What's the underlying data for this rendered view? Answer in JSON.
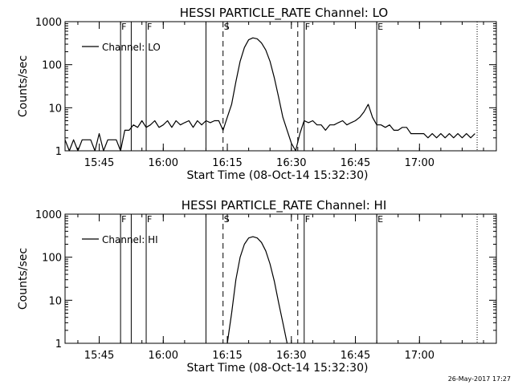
{
  "footer_date": "26-May-2017 17:27",
  "chart_data": [
    {
      "type": "line",
      "title": "HESSI PARTICLE_RATE Channel: LO",
      "xlabel": "Start Time (08-Oct-14 15:32:30)",
      "ylabel": "Counts/sec",
      "legend": "Channel: LO",
      "legend_placement": "top-left",
      "yscale": "log",
      "ylim": [
        1,
        1000
      ],
      "xlim": [
        "15:37",
        "17:18"
      ],
      "xticks": [
        "15:45",
        "16:00",
        "16:15",
        "16:30",
        "16:45",
        "17:00"
      ],
      "yticks": [
        "1",
        "10",
        "100",
        "1000"
      ],
      "markers": [
        {
          "time": "15:50.0",
          "style": "solid",
          "label": "F"
        },
        {
          "time": "15:52.5",
          "style": "solid",
          "label": ""
        },
        {
          "time": "15:56.0",
          "style": "solid",
          "label": "F"
        },
        {
          "time": "16:10.0",
          "style": "solid",
          "label": ""
        },
        {
          "time": "16:14.0",
          "style": "dashed",
          "label": "S"
        },
        {
          "time": "16:31.5",
          "style": "dashed",
          "label": ""
        },
        {
          "time": "16:33.0",
          "style": "solid",
          "label": "F"
        },
        {
          "time": "16:50.0",
          "style": "solid",
          "label": "E"
        },
        {
          "time": "17:13.5",
          "style": "dotted",
          "label": ""
        }
      ],
      "series": [
        {
          "name": "Channel: LO",
          "time": [
            "15:37",
            "15:38",
            "15:39",
            "15:40",
            "15:41",
            "15:42",
            "15:43",
            "15:44",
            "15:45",
            "15:46",
            "15:47",
            "15:48",
            "15:49",
            "15:50",
            "15:51",
            "15:52",
            "15:53",
            "15:54",
            "15:55",
            "15:56",
            "15:57",
            "15:58",
            "15:59",
            "16:00",
            "16:01",
            "16:02",
            "16:03",
            "16:04",
            "16:05",
            "16:06",
            "16:07",
            "16:08",
            "16:09",
            "16:10",
            "16:11",
            "16:12",
            "16:13",
            "16:14",
            "16:15",
            "16:16",
            "16:17",
            "16:18",
            "16:19",
            "16:20",
            "16:21",
            "16:22",
            "16:23",
            "16:24",
            "16:25",
            "16:26",
            "16:27",
            "16:28",
            "16:29",
            "16:30",
            "16:31",
            "16:32",
            "16:33",
            "16:34",
            "16:35",
            "16:36",
            "16:37",
            "16:38",
            "16:39",
            "16:40",
            "16:41",
            "16:42",
            "16:43",
            "16:44",
            "16:45",
            "16:46",
            "16:47",
            "16:48",
            "16:49",
            "16:50",
            "16:51",
            "16:52",
            "16:53",
            "16:54",
            "16:55",
            "16:56",
            "16:57",
            "16:58",
            "16:59",
            "17:00",
            "17:01",
            "17:02",
            "17:03",
            "17:04",
            "17:05",
            "17:06",
            "17:07",
            "17:08",
            "17:09",
            "17:10",
            "17:11",
            "17:12",
            "17:13"
          ],
          "values": [
            1.8,
            1,
            1.8,
            1,
            1.8,
            1.8,
            1.8,
            1,
            2.5,
            1,
            1.8,
            1.8,
            1.8,
            1,
            3,
            3,
            4,
            3.5,
            5,
            3.5,
            4,
            5,
            3.5,
            4,
            5,
            3.5,
            5,
            4,
            4.5,
            5,
            3.5,
            5,
            4,
            5,
            4.5,
            5,
            5,
            3,
            6,
            12,
            40,
            120,
            250,
            380,
            420,
            400,
            320,
            220,
            120,
            50,
            18,
            6,
            3,
            1.5,
            1,
            2.5,
            5,
            4.5,
            5,
            4,
            4,
            3,
            4,
            4,
            4.5,
            5,
            4,
            4.5,
            5,
            6,
            8,
            12,
            6,
            4,
            4,
            3.5,
            4,
            3,
            3,
            3.5,
            3.5,
            2.5,
            2.5,
            2.5,
            2.5,
            2,
            2.5,
            2,
            2.5,
            2,
            2.5,
            2,
            2.5,
            2,
            2.5,
            2,
            2.5
          ]
        }
      ]
    },
    {
      "type": "line",
      "title": "HESSI PARTICLE_RATE Channel: HI",
      "xlabel": "Start Time (08-Oct-14 15:32:30)",
      "ylabel": "Counts/sec",
      "legend": "Channel: HI",
      "legend_placement": "top-left",
      "yscale": "log",
      "ylim": [
        1,
        1000
      ],
      "xlim": [
        "15:37",
        "17:18"
      ],
      "xticks": [
        "15:45",
        "16:00",
        "16:15",
        "16:30",
        "16:45",
        "17:00"
      ],
      "yticks": [
        "1",
        "10",
        "100",
        "1000"
      ],
      "markers": [
        {
          "time": "15:50.0",
          "style": "solid",
          "label": "F"
        },
        {
          "time": "15:52.5",
          "style": "solid",
          "label": ""
        },
        {
          "time": "15:56.0",
          "style": "solid",
          "label": "F"
        },
        {
          "time": "16:10.0",
          "style": "solid",
          "label": ""
        },
        {
          "time": "16:14.0",
          "style": "dashed",
          "label": "S"
        },
        {
          "time": "16:31.5",
          "style": "dashed",
          "label": ""
        },
        {
          "time": "16:33.0",
          "style": "solid",
          "label": "F"
        },
        {
          "time": "16:50.0",
          "style": "solid",
          "label": "E"
        },
        {
          "time": "17:13.5",
          "style": "dotted",
          "label": ""
        }
      ],
      "series": [
        {
          "name": "Channel: HI",
          "time": [
            "16:15",
            "16:16",
            "16:17",
            "16:18",
            "16:19",
            "16:20",
            "16:21",
            "16:22",
            "16:23",
            "16:24",
            "16:25",
            "16:26",
            "16:27",
            "16:28",
            "16:29"
          ],
          "values": [
            1,
            5,
            30,
            100,
            200,
            280,
            300,
            280,
            220,
            140,
            70,
            28,
            9,
            3,
            1
          ]
        }
      ]
    }
  ]
}
